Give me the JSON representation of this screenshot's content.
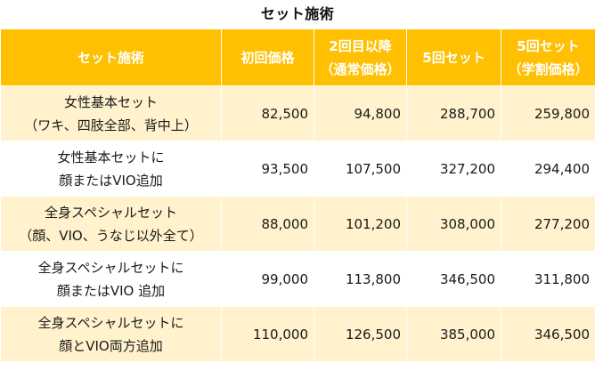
{
  "title": "セット施術",
  "headers": [
    {
      "line1": "セット施術",
      "line2": ""
    },
    {
      "line1": "初回価格",
      "line2": ""
    },
    {
      "line1": "2回目以降",
      "line2": "（通常価格）"
    },
    {
      "line1": "5回セット",
      "line2": ""
    },
    {
      "line1": "5回セット",
      "line2": "（学割価格）"
    }
  ],
  "rows": [
    {
      "name1": "女性基本セット",
      "name2": "（ワキ、四肢全部、背中上）",
      "first": "82,500",
      "regular": "94,800",
      "set5": "288,700",
      "set5_student": "259,800"
    },
    {
      "name1": "女性基本セットに",
      "name2": "顔またはVIO追加",
      "first": "93,500",
      "regular": "107,500",
      "set5": "327,200",
      "set5_student": "294,400"
    },
    {
      "name1": "全身スペシャルセット",
      "name2": "（顔、VIO、うなじ以外全て）",
      "first": "88,000",
      "regular": "101,200",
      "set5": "308,000",
      "set5_student": "277,200"
    },
    {
      "name1": "全身スペシャルセットに",
      "name2": "顔またはVIO 追加",
      "first": "99,000",
      "regular": "113,800",
      "set5": "346,500",
      "set5_student": "311,800"
    },
    {
      "name1": "全身スペシャルセットに",
      "name2": "顔とVIO両方追加",
      "first": "110,000",
      "regular": "126,500",
      "set5": "385,000",
      "set5_student": "346,500"
    }
  ],
  "colors": {
    "header_bg": "#ffc001",
    "header_text": "#ffffff",
    "band_bg": "#fff2cc",
    "plain_bg": "#ffffff"
  }
}
